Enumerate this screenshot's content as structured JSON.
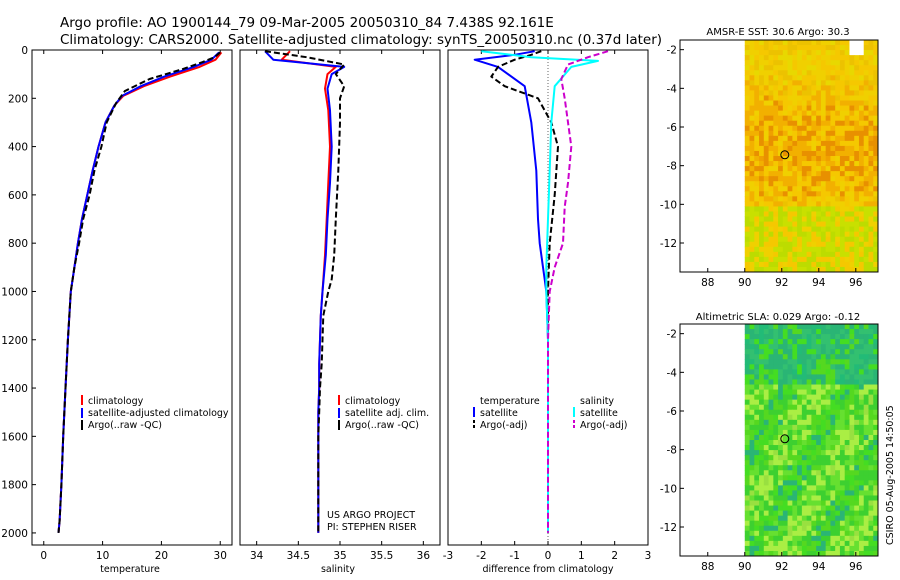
{
  "title": {
    "line1": "Argo profile: AO 1900144_79 09-Mar-2005 20050310_84 7.438S 92.161E",
    "line2": "Climatology: CARS2000. Satellite-adjusted climatology: synTS_20050310.nc (0.37d later)"
  },
  "credit": "CSIRO 05-Aug-2005 14:50:05",
  "project": {
    "line1": "US ARGO PROJECT",
    "line2": "PI: STEPHEN RISER"
  },
  "colors": {
    "climatology": "#ff0000",
    "satellite": "#0000ff",
    "argo": "#000000",
    "sal_satellite": "#00ffff",
    "sal_argo": "#cc00cc"
  },
  "chart_data": [
    {
      "type": "line",
      "panel": "temperature",
      "xlabel": "temperature",
      "xlim": [
        -2,
        32
      ],
      "xticks": [
        0,
        10,
        20,
        30
      ],
      "ylim": [
        2050,
        0
      ],
      "yticks": [
        0,
        200,
        400,
        600,
        800,
        1000,
        1200,
        1400,
        1600,
        1800,
        2000
      ],
      "legend": [
        "climatology",
        "satellite-adjusted climatology",
        "Argo(..raw -QC)"
      ],
      "series": [
        {
          "name": "climatology",
          "color": "#ff0000",
          "dash": "solid",
          "x": [
            30.2,
            29.2,
            26.5,
            21.5,
            17.0,
            13.5,
            12.0,
            10.5,
            9.3,
            8.3,
            7.4,
            6.5,
            5.8,
            5.2,
            4.6,
            4.1,
            3.7,
            3.3,
            3.0,
            2.7,
            2.5
          ],
          "y": [
            10,
            40,
            70,
            110,
            150,
            190,
            230,
            300,
            400,
            500,
            600,
            700,
            800,
            900,
            1000,
            1200,
            1400,
            1600,
            1800,
            1950,
            2000
          ]
        },
        {
          "name": "satellite-adjusted climatology",
          "color": "#0000ff",
          "dash": "solid",
          "x": [
            29.8,
            28.5,
            25.5,
            20.5,
            16.5,
            13.3,
            12.0,
            10.5,
            9.3,
            8.3,
            7.4,
            6.5,
            5.8,
            5.2,
            4.6,
            4.1,
            3.7,
            3.3,
            3.0,
            2.7,
            2.5
          ],
          "y": [
            10,
            40,
            70,
            110,
            150,
            190,
            230,
            300,
            400,
            500,
            600,
            700,
            800,
            900,
            1000,
            1200,
            1400,
            1600,
            1800,
            1950,
            2000
          ]
        },
        {
          "name": "Argo(..raw -QC)",
          "color": "#000000",
          "dash": "dashed",
          "x": [
            30.0,
            29.0,
            27.0,
            23.5,
            18.0,
            13.8,
            12.3,
            10.7,
            9.8,
            8.6,
            7.8,
            6.7,
            6.0,
            5.2,
            4.6,
            4.1,
            3.7,
            3.3,
            3.0,
            2.7,
            2.5
          ],
          "y": [
            10,
            30,
            50,
            80,
            120,
            170,
            220,
            300,
            400,
            500,
            600,
            700,
            800,
            900,
            1000,
            1200,
            1400,
            1600,
            1800,
            1950,
            2000
          ]
        }
      ]
    },
    {
      "type": "line",
      "panel": "salinity",
      "xlabel": "salinity",
      "xlim": [
        33.8,
        36.2
      ],
      "xticks": [
        34,
        34.5,
        35,
        35.5,
        36
      ],
      "ylim": [
        2050,
        0
      ],
      "legend": [
        "climatology",
        "satellite adj. clim.",
        "Argo(..raw -QC)"
      ],
      "series": [
        {
          "name": "climatology",
          "color": "#ff0000",
          "dash": "solid",
          "x": [
            34.4,
            34.3,
            34.95,
            34.85,
            34.82,
            34.86,
            34.88,
            34.86,
            34.84,
            34.82,
            34.79,
            34.77,
            34.76,
            34.75,
            34.75,
            34.74,
            34.74,
            34.74,
            34.74,
            34.74
          ],
          "y": [
            5,
            40,
            70,
            100,
            160,
            250,
            400,
            550,
            700,
            850,
            1000,
            1100,
            1200,
            1300,
            1400,
            1500,
            1600,
            1800,
            1950,
            2000
          ]
        },
        {
          "name": "satellite adj. clim.",
          "color": "#0000ff",
          "dash": "solid",
          "x": [
            34.1,
            34.2,
            35.05,
            34.9,
            34.85,
            34.88,
            34.9,
            34.88,
            34.85,
            34.83,
            34.79,
            34.77,
            34.76,
            34.75,
            34.75,
            34.74,
            34.74,
            34.74,
            34.74,
            34.74
          ],
          "y": [
            5,
            40,
            70,
            100,
            160,
            250,
            400,
            550,
            700,
            850,
            1000,
            1100,
            1200,
            1300,
            1400,
            1500,
            1600,
            1800,
            1950,
            2000
          ]
        },
        {
          "name": "Argo(..raw -QC)",
          "color": "#000000",
          "dash": "dashed",
          "x": [
            34.1,
            34.6,
            35.05,
            34.95,
            35.05,
            35.0,
            35.0,
            34.98,
            34.95,
            34.93,
            34.9,
            34.86,
            34.8,
            34.78,
            34.76,
            34.75,
            34.74,
            34.74,
            34.74,
            34.74
          ],
          "y": [
            5,
            30,
            60,
            100,
            150,
            200,
            300,
            500,
            700,
            850,
            950,
            1000,
            1100,
            1300,
            1400,
            1500,
            1600,
            1800,
            1950,
            2000
          ]
        }
      ]
    },
    {
      "type": "line",
      "panel": "difference",
      "xlabel": "difference from climatology",
      "xlim": [
        -3,
        3
      ],
      "xticks": [
        -3,
        -2,
        -1,
        0,
        1,
        2,
        3
      ],
      "ylim": [
        2050,
        0
      ],
      "legend_temperature": {
        "heading": "temperature",
        "items": [
          "satellite",
          "Argo(-adj)"
        ]
      },
      "legend_salinity": {
        "heading": "salinity",
        "items": [
          "satellite",
          "Argo(-adj)"
        ]
      },
      "series": [
        {
          "name": "satellite",
          "group": "temperature",
          "color": "#0000ff",
          "dash": "solid",
          "x": [
            -0.4,
            -1.0,
            -2.2,
            -1.5,
            -0.7,
            -0.5,
            -0.35,
            -0.3,
            -0.25,
            -0.15,
            -0.1,
            -0.05,
            0.0,
            0.0,
            0.0,
            0.0,
            0.0,
            0.0,
            0.0
          ],
          "y": [
            5,
            20,
            40,
            70,
            150,
            300,
            500,
            700,
            800,
            900,
            950,
            1000,
            1200,
            1400,
            1600,
            1800,
            1950,
            2000,
            2000
          ]
        },
        {
          "name": "Argo(-adj)",
          "group": "temperature",
          "color": "#000000",
          "dash": "dashed",
          "x": [
            -0.2,
            -0.5,
            -1.0,
            -1.5,
            -1.7,
            -1.3,
            -0.3,
            0.1,
            0.3,
            0.2,
            0.05,
            0.0,
            0.0,
            0.0,
            0.0,
            0.0,
            0.0
          ],
          "y": [
            5,
            20,
            40,
            70,
            110,
            150,
            200,
            300,
            400,
            600,
            800,
            1000,
            1200,
            1400,
            1600,
            1800,
            2000
          ]
        },
        {
          "name": "satellite",
          "group": "salinity",
          "color": "#00ffff",
          "dash": "solid",
          "x": [
            -2.0,
            -0.5,
            1.5,
            0.7,
            0.2,
            0.1,
            0.05,
            0.0,
            -0.05,
            -0.05,
            0.0,
            0.0,
            0.0,
            0.0,
            0.0
          ],
          "y": [
            5,
            30,
            45,
            70,
            150,
            300,
            500,
            700,
            900,
            1000,
            1200,
            1400,
            1600,
            1800,
            2000
          ]
        },
        {
          "name": "Argo(-adj)",
          "group": "salinity",
          "color": "#cc00cc",
          "dash": "dashed",
          "x": [
            1.8,
            1.2,
            0.6,
            0.4,
            0.5,
            0.6,
            0.7,
            0.6,
            0.5,
            0.45,
            0.2,
            0.05,
            0.0,
            0.0,
            0.0
          ],
          "y": [
            5,
            30,
            60,
            120,
            200,
            300,
            400,
            550,
            650,
            800,
            900,
            1000,
            1200,
            1600,
            2000
          ]
        }
      ]
    },
    {
      "type": "heatmap",
      "panel": "sst-map",
      "title": "AMSR-E SST: 30.6 Argo: 30.3",
      "xlim": [
        86.5,
        97.2
      ],
      "ylim": [
        -13.5,
        -1.5
      ],
      "xticks": [
        88,
        90,
        92,
        94,
        96
      ],
      "yticks": [
        -2,
        -4,
        -6,
        -8,
        -10,
        -12
      ],
      "data_x_range": [
        90,
        97.2
      ],
      "argo_position": {
        "lon": 92.161,
        "lat": -7.438
      }
    },
    {
      "type": "heatmap",
      "panel": "sla-map",
      "title": "Altimetric SLA: 0.029 Argo: -0.12",
      "xlim": [
        86.5,
        97.2
      ],
      "ylim": [
        -13.5,
        -1.5
      ],
      "xticks": [
        88,
        90,
        92,
        94,
        96
      ],
      "yticks": [
        -2,
        -4,
        -6,
        -8,
        -10,
        -12
      ],
      "data_x_range": [
        90,
        97.2
      ],
      "argo_position": {
        "lon": 92.161,
        "lat": -7.438
      }
    }
  ]
}
